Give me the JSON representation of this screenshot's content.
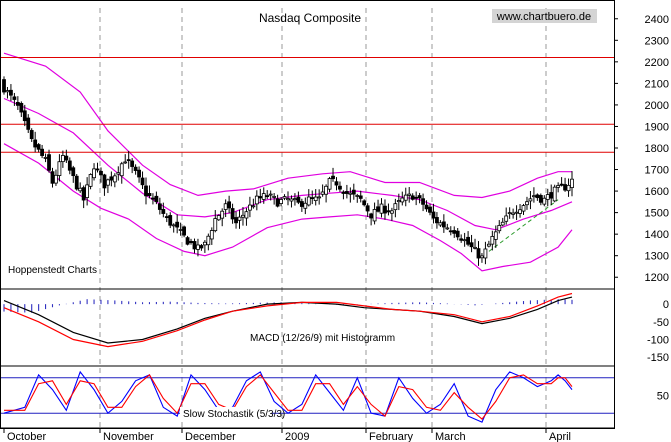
{
  "chart_data": [
    {
      "type": "candlestick",
      "title": "Nasdaq Composite",
      "source": "www.chartbuero.de",
      "credit": "Hoppenstedt Charts",
      "x_labels": [
        "October",
        "November",
        "December",
        "2009",
        "February",
        "March",
        "April"
      ],
      "y_ticks": [
        2400,
        2300,
        2200,
        2100,
        2000,
        1900,
        1800,
        1700,
        1600,
        1500,
        1400,
        1300,
        1200
      ],
      "ylim": [
        1150,
        2450
      ],
      "horizontal_lines": [
        2220,
        1910,
        1780
      ],
      "grid": "vertical dashed",
      "close_anchors": [
        [
          0,
          2080
        ],
        [
          4,
          1990
        ],
        [
          8,
          1830
        ],
        [
          12,
          1740
        ],
        [
          14,
          1640
        ],
        [
          17,
          1760
        ],
        [
          20,
          1660
        ],
        [
          23,
          1560
        ],
        [
          26,
          1720
        ],
        [
          29,
          1630
        ],
        [
          32,
          1680
        ],
        [
          35,
          1750
        ],
        [
          38,
          1680
        ],
        [
          41,
          1590
        ],
        [
          44,
          1540
        ],
        [
          47,
          1470
        ],
        [
          50,
          1420
        ],
        [
          53,
          1370
        ],
        [
          56,
          1330
        ],
        [
          58,
          1350
        ],
        [
          61,
          1470
        ],
        [
          64,
          1530
        ],
        [
          67,
          1450
        ],
        [
          70,
          1510
        ],
        [
          73,
          1560
        ],
        [
          76,
          1580
        ],
        [
          79,
          1550
        ],
        [
          82,
          1560
        ],
        [
          85,
          1540
        ],
        [
          88,
          1560
        ],
        [
          91,
          1560
        ],
        [
          94,
          1640
        ],
        [
          96,
          1640
        ],
        [
          99,
          1590
        ],
        [
          103,
          1560
        ],
        [
          106,
          1490
        ],
        [
          109,
          1520
        ],
        [
          112,
          1510
        ],
        [
          115,
          1560
        ],
        [
          118,
          1580
        ],
        [
          121,
          1540
        ],
        [
          124,
          1470
        ],
        [
          127,
          1440
        ],
        [
          130,
          1420
        ],
        [
          133,
          1370
        ],
        [
          136,
          1320
        ],
        [
          138,
          1290
        ],
        [
          141,
          1380
        ],
        [
          144,
          1450
        ],
        [
          147,
          1510
        ],
        [
          150,
          1540
        ],
        [
          153,
          1580
        ],
        [
          156,
          1560
        ],
        [
          159,
          1600
        ],
        [
          162,
          1620
        ],
        [
          164,
          1650
        ]
      ],
      "bollinger": {
        "upper": [
          [
            0,
            2240
          ],
          [
            12,
            2180
          ],
          [
            22,
            2060
          ],
          [
            30,
            1880
          ],
          [
            40,
            1720
          ],
          [
            48,
            1630
          ],
          [
            56,
            1580
          ],
          [
            64,
            1600
          ],
          [
            72,
            1610
          ],
          [
            82,
            1660
          ],
          [
            92,
            1680
          ],
          [
            100,
            1690
          ],
          [
            110,
            1640
          ],
          [
            120,
            1640
          ],
          [
            130,
            1580
          ],
          [
            138,
            1570
          ],
          [
            146,
            1600
          ],
          [
            154,
            1660
          ],
          [
            160,
            1690
          ],
          [
            164,
            1690
          ]
        ],
        "middle": [
          [
            0,
            2030
          ],
          [
            10,
            1960
          ],
          [
            20,
            1870
          ],
          [
            30,
            1720
          ],
          [
            40,
            1590
          ],
          [
            50,
            1490
          ],
          [
            58,
            1480
          ],
          [
            66,
            1500
          ],
          [
            76,
            1560
          ],
          [
            86,
            1580
          ],
          [
            94,
            1590
          ],
          [
            102,
            1600
          ],
          [
            112,
            1580
          ],
          [
            120,
            1560
          ],
          [
            128,
            1510
          ],
          [
            136,
            1440
          ],
          [
            142,
            1420
          ],
          [
            150,
            1470
          ],
          [
            158,
            1510
          ],
          [
            164,
            1550
          ]
        ],
        "lower": [
          [
            0,
            1820
          ],
          [
            10,
            1730
          ],
          [
            20,
            1600
          ],
          [
            28,
            1520
          ],
          [
            36,
            1470
          ],
          [
            44,
            1380
          ],
          [
            52,
            1320
          ],
          [
            58,
            1300
          ],
          [
            66,
            1340
          ],
          [
            76,
            1430
          ],
          [
            86,
            1470
          ],
          [
            94,
            1480
          ],
          [
            102,
            1490
          ],
          [
            110,
            1470
          ],
          [
            118,
            1440
          ],
          [
            126,
            1370
          ],
          [
            132,
            1310
          ],
          [
            138,
            1230
          ],
          [
            144,
            1250
          ],
          [
            152,
            1270
          ],
          [
            160,
            1340
          ],
          [
            164,
            1420
          ]
        ]
      },
      "trendline": [
        [
          140,
          1320
        ],
        [
          160,
          1560
        ]
      ]
    },
    {
      "type": "line",
      "title": "MACD (12/26/9) mit Histogramm",
      "y_ticks": [
        "0",
        "-50",
        "-100",
        "-150"
      ],
      "ylim": [
        -175,
        40
      ],
      "series": [
        {
          "color": "#000000",
          "points": [
            [
              0,
              10
            ],
            [
              10,
              -30
            ],
            [
              20,
              -80
            ],
            [
              30,
              -110
            ],
            [
              40,
              -100
            ],
            [
              50,
              -70
            ],
            [
              58,
              -40
            ],
            [
              66,
              -20
            ],
            [
              76,
              0
            ],
            [
              86,
              5
            ],
            [
              96,
              0
            ],
            [
              104,
              -10
            ],
            [
              112,
              -15
            ],
            [
              120,
              -20
            ],
            [
              130,
              -35
            ],
            [
              138,
              -55
            ],
            [
              146,
              -40
            ],
            [
              154,
              -15
            ],
            [
              160,
              10
            ],
            [
              164,
              20
            ]
          ]
        },
        {
          "color": "#ff0000",
          "points": [
            [
              0,
              -10
            ],
            [
              10,
              -50
            ],
            [
              20,
              -100
            ],
            [
              30,
              -120
            ],
            [
              40,
              -105
            ],
            [
              50,
              -75
            ],
            [
              58,
              -45
            ],
            [
              66,
              -20
            ],
            [
              76,
              -5
            ],
            [
              86,
              5
            ],
            [
              96,
              5
            ],
            [
              104,
              -5
            ],
            [
              112,
              -15
            ],
            [
              120,
              -20
            ],
            [
              130,
              -30
            ],
            [
              138,
              -50
            ],
            [
              146,
              -35
            ],
            [
              154,
              -5
            ],
            [
              160,
              20
            ],
            [
              164,
              30
            ]
          ]
        }
      ],
      "histogram": [
        [
          0,
          -60
        ],
        [
          8,
          -70
        ],
        [
          16,
          -10
        ],
        [
          24,
          40
        ],
        [
          32,
          30
        ],
        [
          40,
          15
        ],
        [
          48,
          20
        ],
        [
          56,
          10
        ],
        [
          64,
          5
        ],
        [
          72,
          10
        ],
        [
          80,
          15
        ],
        [
          88,
          5
        ],
        [
          96,
          -5
        ],
        [
          104,
          0
        ],
        [
          112,
          10
        ],
        [
          120,
          15
        ],
        [
          128,
          5
        ],
        [
          136,
          -10
        ],
        [
          144,
          10
        ],
        [
          152,
          30
        ],
        [
          160,
          40
        ],
        [
          164,
          35
        ]
      ]
    },
    {
      "type": "line",
      "title": "Slow Stochastik (5/3/3)",
      "y_ticks": [
        "50"
      ],
      "ylim": [
        0,
        100
      ],
      "reference_lines": [
        80,
        20
      ],
      "series": [
        {
          "color": "#0000ff",
          "points": [
            [
              0,
              20
            ],
            [
              6,
              30
            ],
            [
              10,
              85
            ],
            [
              14,
              60
            ],
            [
              18,
              25
            ],
            [
              22,
              90
            ],
            [
              26,
              60
            ],
            [
              30,
              20
            ],
            [
              34,
              40
            ],
            [
              38,
              75
            ],
            [
              42,
              85
            ],
            [
              46,
              30
            ],
            [
              50,
              15
            ],
            [
              54,
              85
            ],
            [
              58,
              60
            ],
            [
              62,
              25
            ],
            [
              66,
              30
            ],
            [
              70,
              75
            ],
            [
              74,
              90
            ],
            [
              78,
              40
            ],
            [
              82,
              20
            ],
            [
              86,
              35
            ],
            [
              90,
              85
            ],
            [
              94,
              55
            ],
            [
              98,
              25
            ],
            [
              102,
              80
            ],
            [
              106,
              20
            ],
            [
              110,
              15
            ],
            [
              114,
              80
            ],
            [
              118,
              45
            ],
            [
              122,
              20
            ],
            [
              126,
              35
            ],
            [
              130,
              70
            ],
            [
              134,
              15
            ],
            [
              138,
              5
            ],
            [
              142,
              60
            ],
            [
              146,
              90
            ],
            [
              150,
              80
            ],
            [
              154,
              65
            ],
            [
              158,
              75
            ],
            [
              160,
              85
            ],
            [
              162,
              75
            ],
            [
              164,
              60
            ]
          ]
        },
        {
          "color": "#ff0000",
          "points": [
            [
              0,
              25
            ],
            [
              6,
              25
            ],
            [
              10,
              70
            ],
            [
              14,
              75
            ],
            [
              18,
              35
            ],
            [
              22,
              75
            ],
            [
              26,
              70
            ],
            [
              30,
              30
            ],
            [
              34,
              30
            ],
            [
              38,
              65
            ],
            [
              42,
              85
            ],
            [
              46,
              45
            ],
            [
              50,
              20
            ],
            [
              54,
              70
            ],
            [
              58,
              70
            ],
            [
              62,
              35
            ],
            [
              66,
              25
            ],
            [
              70,
              65
            ],
            [
              74,
              85
            ],
            [
              78,
              55
            ],
            [
              82,
              25
            ],
            [
              86,
              25
            ],
            [
              90,
              70
            ],
            [
              94,
              70
            ],
            [
              98,
              35
            ],
            [
              102,
              65
            ],
            [
              106,
              35
            ],
            [
              110,
              15
            ],
            [
              114,
              65
            ],
            [
              118,
              60
            ],
            [
              122,
              30
            ],
            [
              126,
              25
            ],
            [
              130,
              55
            ],
            [
              134,
              30
            ],
            [
              138,
              10
            ],
            [
              142,
              40
            ],
            [
              146,
              80
            ],
            [
              150,
              85
            ],
            [
              154,
              70
            ],
            [
              158,
              70
            ],
            [
              160,
              80
            ],
            [
              162,
              80
            ],
            [
              164,
              65
            ]
          ]
        }
      ]
    }
  ]
}
